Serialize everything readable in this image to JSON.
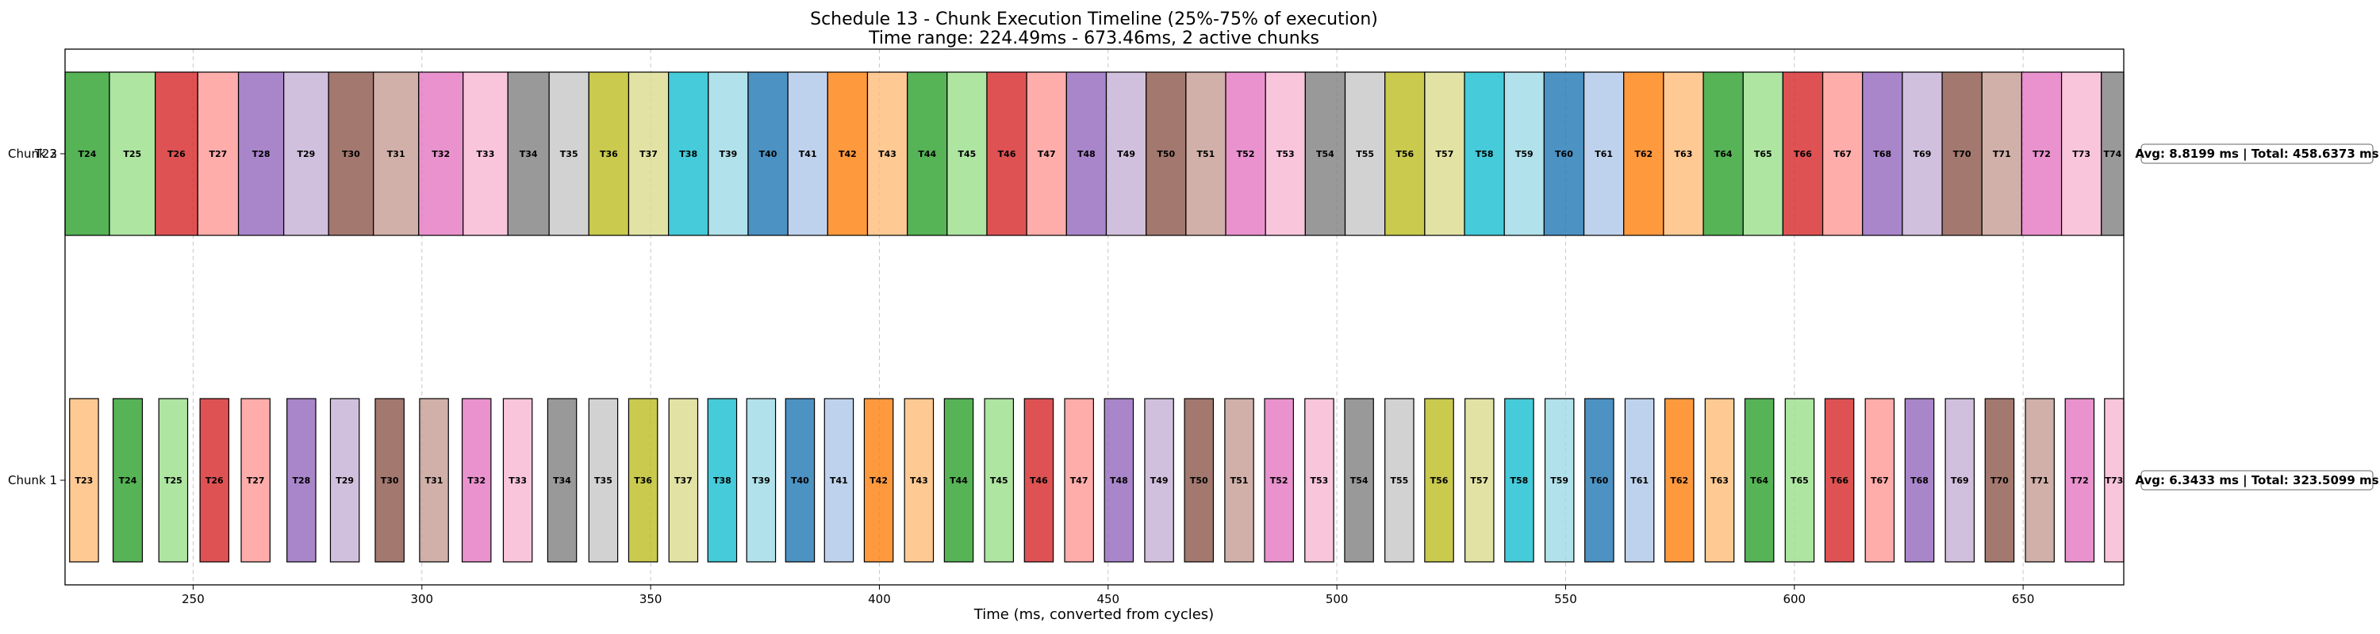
{
  "chart_data": {
    "type": "bar",
    "title": "Schedule 13 - Chunk Execution Timeline (25%-75% of execution)",
    "subtitle": "Time range: 224.49ms - 673.46ms, 2 active chunks",
    "xlabel": "Time (ms, converted from cycles)",
    "xlim": [
      222,
      672
    ],
    "x_ticks": [
      250,
      300,
      350,
      400,
      450,
      500,
      550,
      600,
      650
    ],
    "grid": "x-dashed",
    "colors": [
      "#ffbb78",
      "#2ca02c",
      "#98df8a",
      "#d62728",
      "#ff9896",
      "#9467bd",
      "#c5b0d5",
      "#8c564b",
      "#c49c94",
      "#e377c2",
      "#f7b6d2",
      "#7f7f7f",
      "#c7c7c7",
      "#bcbd22",
      "#dbdb8d",
      "#17becf",
      "#9edae5",
      "#1f77b4",
      "#aec7e8",
      "#ff7f0e"
    ],
    "rows": [
      {
        "label": "Chunk 2",
        "label_overlap": "T23",
        "annotation": "Avg: 8.8199 ms | Total: 458.6373 ms",
        "tasks": [
          {
            "name": "T24",
            "start": 222.0,
            "end": 231.7
          },
          {
            "name": "T25",
            "start": 231.7,
            "end": 241.7
          },
          {
            "name": "T26",
            "start": 241.7,
            "end": 251.0
          },
          {
            "name": "T27",
            "start": 251.0,
            "end": 259.9
          },
          {
            "name": "T28",
            "start": 259.9,
            "end": 269.8
          },
          {
            "name": "T29",
            "start": 269.8,
            "end": 279.6
          },
          {
            "name": "T30",
            "start": 279.6,
            "end": 289.4
          },
          {
            "name": "T31",
            "start": 289.4,
            "end": 299.3
          },
          {
            "name": "T32",
            "start": 299.3,
            "end": 309.0
          },
          {
            "name": "T33",
            "start": 309.0,
            "end": 318.8
          },
          {
            "name": "T34",
            "start": 318.8,
            "end": 327.8
          },
          {
            "name": "T35",
            "start": 327.8,
            "end": 336.5
          },
          {
            "name": "T36",
            "start": 336.5,
            "end": 345.2
          },
          {
            "name": "T37",
            "start": 345.2,
            "end": 353.9
          },
          {
            "name": "T38",
            "start": 353.9,
            "end": 362.6
          },
          {
            "name": "T39",
            "start": 362.6,
            "end": 371.3
          },
          {
            "name": "T40",
            "start": 371.3,
            "end": 380.0
          },
          {
            "name": "T41",
            "start": 380.0,
            "end": 388.7
          },
          {
            "name": "T42",
            "start": 388.7,
            "end": 397.4
          },
          {
            "name": "T43",
            "start": 397.4,
            "end": 406.1
          },
          {
            "name": "T44",
            "start": 406.1,
            "end": 414.8
          },
          {
            "name": "T45",
            "start": 414.8,
            "end": 423.5
          },
          {
            "name": "T46",
            "start": 423.5,
            "end": 432.2
          },
          {
            "name": "T47",
            "start": 432.2,
            "end": 440.9
          },
          {
            "name": "T48",
            "start": 440.9,
            "end": 449.6
          },
          {
            "name": "T49",
            "start": 449.6,
            "end": 458.3
          },
          {
            "name": "T50",
            "start": 458.3,
            "end": 467.0
          },
          {
            "name": "T51",
            "start": 467.0,
            "end": 475.7
          },
          {
            "name": "T52",
            "start": 475.7,
            "end": 484.4
          },
          {
            "name": "T53",
            "start": 484.4,
            "end": 493.1
          },
          {
            "name": "T54",
            "start": 493.1,
            "end": 501.8
          },
          {
            "name": "T55",
            "start": 501.8,
            "end": 510.5
          },
          {
            "name": "T56",
            "start": 510.5,
            "end": 519.2
          },
          {
            "name": "T57",
            "start": 519.2,
            "end": 527.9
          },
          {
            "name": "T58",
            "start": 527.9,
            "end": 536.6
          },
          {
            "name": "T59",
            "start": 536.6,
            "end": 545.3
          },
          {
            "name": "T60",
            "start": 545.3,
            "end": 554.0
          },
          {
            "name": "T61",
            "start": 554.0,
            "end": 562.7
          },
          {
            "name": "T62",
            "start": 562.7,
            "end": 571.4
          },
          {
            "name": "T63",
            "start": 571.4,
            "end": 580.1
          },
          {
            "name": "T64",
            "start": 580.1,
            "end": 588.8
          },
          {
            "name": "T65",
            "start": 588.8,
            "end": 597.5
          },
          {
            "name": "T66",
            "start": 597.5,
            "end": 606.2
          },
          {
            "name": "T67",
            "start": 606.2,
            "end": 614.9
          },
          {
            "name": "T68",
            "start": 614.9,
            "end": 623.6
          },
          {
            "name": "T69",
            "start": 623.6,
            "end": 632.3
          },
          {
            "name": "T70",
            "start": 632.3,
            "end": 641.0
          },
          {
            "name": "T71",
            "start": 641.0,
            "end": 649.7
          },
          {
            "name": "T72",
            "start": 649.7,
            "end": 658.4
          },
          {
            "name": "T73",
            "start": 658.4,
            "end": 667.1
          },
          {
            "name": "T74",
            "start": 667.1,
            "end": 672.0
          }
        ]
      },
      {
        "label": "Chunk 1",
        "annotation": "Avg: 6.3433 ms | Total: 323.5099 ms",
        "tasks": [
          {
            "name": "T23",
            "start": 223.0,
            "end": 229.3
          },
          {
            "name": "T24",
            "start": 232.5,
            "end": 238.9
          },
          {
            "name": "T25",
            "start": 242.5,
            "end": 248.8
          },
          {
            "name": "T26",
            "start": 251.5,
            "end": 257.8
          },
          {
            "name": "T27",
            "start": 260.5,
            "end": 266.8
          },
          {
            "name": "T28",
            "start": 270.5,
            "end": 276.8
          },
          {
            "name": "T29",
            "start": 280.0,
            "end": 286.3
          },
          {
            "name": "T30",
            "start": 289.8,
            "end": 296.1
          },
          {
            "name": "T31",
            "start": 299.5,
            "end": 305.8
          },
          {
            "name": "T32",
            "start": 308.8,
            "end": 315.1
          },
          {
            "name": "T33",
            "start": 317.8,
            "end": 324.1
          },
          {
            "name": "T34",
            "start": 327.5,
            "end": 333.8
          },
          {
            "name": "T35",
            "start": 336.5,
            "end": 342.8
          },
          {
            "name": "T36",
            "start": 345.2,
            "end": 351.5
          },
          {
            "name": "T37",
            "start": 354.0,
            "end": 360.3
          },
          {
            "name": "T38",
            "start": 362.5,
            "end": 368.8
          },
          {
            "name": "T39",
            "start": 371.0,
            "end": 377.3
          },
          {
            "name": "T40",
            "start": 379.5,
            "end": 385.8
          },
          {
            "name": "T41",
            "start": 388.0,
            "end": 394.3
          },
          {
            "name": "T42",
            "start": 396.7,
            "end": 403.0
          },
          {
            "name": "T43",
            "start": 405.5,
            "end": 411.8
          },
          {
            "name": "T44",
            "start": 414.2,
            "end": 420.5
          },
          {
            "name": "T45",
            "start": 423.0,
            "end": 429.3
          },
          {
            "name": "T46",
            "start": 431.7,
            "end": 438.0
          },
          {
            "name": "T47",
            "start": 440.5,
            "end": 446.8
          },
          {
            "name": "T48",
            "start": 449.2,
            "end": 455.5
          },
          {
            "name": "T49",
            "start": 458.0,
            "end": 464.3
          },
          {
            "name": "T50",
            "start": 466.7,
            "end": 473.0
          },
          {
            "name": "T51",
            "start": 475.5,
            "end": 481.8
          },
          {
            "name": "T52",
            "start": 484.2,
            "end": 490.5
          },
          {
            "name": "T53",
            "start": 493.0,
            "end": 499.3
          },
          {
            "name": "T54",
            "start": 501.7,
            "end": 508.0
          },
          {
            "name": "T55",
            "start": 510.5,
            "end": 516.8
          },
          {
            "name": "T56",
            "start": 519.2,
            "end": 525.5
          },
          {
            "name": "T57",
            "start": 528.0,
            "end": 534.3
          },
          {
            "name": "T58",
            "start": 536.7,
            "end": 543.0
          },
          {
            "name": "T59",
            "start": 545.5,
            "end": 551.8
          },
          {
            "name": "T60",
            "start": 554.2,
            "end": 560.5
          },
          {
            "name": "T61",
            "start": 563.0,
            "end": 569.3
          },
          {
            "name": "T62",
            "start": 571.7,
            "end": 578.0
          },
          {
            "name": "T63",
            "start": 580.5,
            "end": 586.8
          },
          {
            "name": "T64",
            "start": 589.2,
            "end": 595.5
          },
          {
            "name": "T65",
            "start": 598.0,
            "end": 604.3
          },
          {
            "name": "T66",
            "start": 606.7,
            "end": 613.0
          },
          {
            "name": "T67",
            "start": 615.5,
            "end": 621.8
          },
          {
            "name": "T68",
            "start": 624.2,
            "end": 630.5
          },
          {
            "name": "T69",
            "start": 633.0,
            "end": 639.3
          },
          {
            "name": "T70",
            "start": 641.7,
            "end": 648.0
          },
          {
            "name": "T71",
            "start": 650.5,
            "end": 656.8
          },
          {
            "name": "T72",
            "start": 659.2,
            "end": 665.5
          },
          {
            "name": "T73",
            "start": 667.8,
            "end": 674.1
          }
        ]
      }
    ]
  }
}
